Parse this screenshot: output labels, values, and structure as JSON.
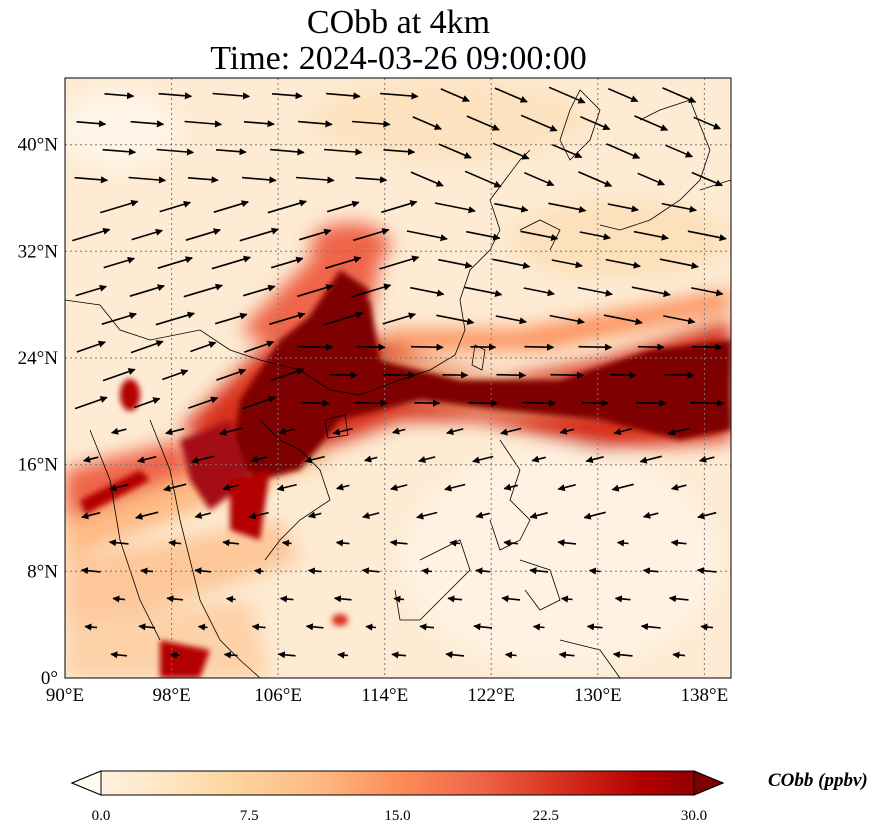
{
  "title_line1": "CObb at 4km",
  "title_line2": "Time: 2024-03-26 09:00:00",
  "map": {
    "lon_range": [
      90,
      140
    ],
    "lat_range": [
      0,
      45
    ],
    "lon_ticks": [
      "90°E",
      "98°E",
      "106°E",
      "114°E",
      "122°E",
      "130°E",
      "138°E"
    ],
    "lat_ticks": [
      "0°",
      "8°N",
      "16°N",
      "24°N",
      "32°N",
      "40°N"
    ],
    "grid": true,
    "field_name": "CObb",
    "arrows": "wind vectors"
  },
  "colorbar": {
    "label": "CObb (ppbv)",
    "ticks": [
      "0.0",
      "7.5",
      "15.0",
      "22.5",
      "30.0"
    ],
    "range": [
      0,
      30
    ],
    "extend": "both",
    "colormap": [
      "#fff7ec",
      "#fee8c8",
      "#fdd49e",
      "#fdbb84",
      "#fc8d59",
      "#ef6548",
      "#d7301f",
      "#b30000",
      "#7f0000"
    ]
  }
}
